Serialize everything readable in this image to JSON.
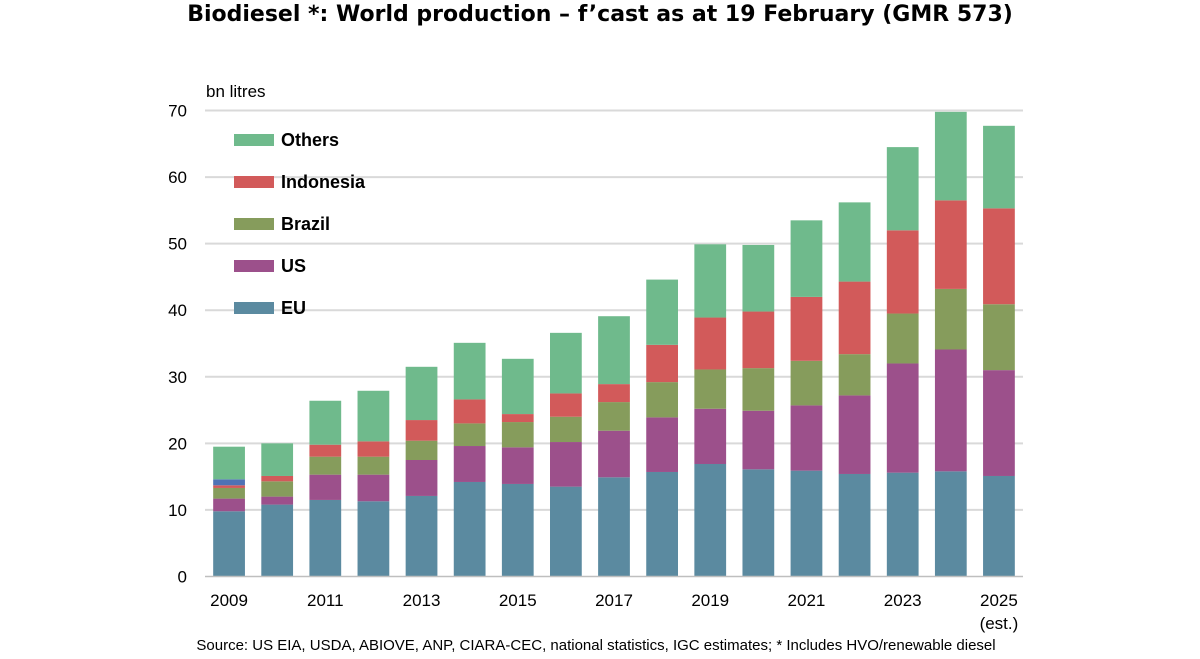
{
  "title": "Biodiesel *: World production – f’cast as at 19 February (GMR 573)",
  "source": "Source: US EIA, USDA, ABIOVE, ANP, CIARA-CEC, national statistics, IGC estimates; * Includes HVO/renewable diesel",
  "chart_data": {
    "type": "bar",
    "stacked": true,
    "title": "Biodiesel *: World production – f’cast as at 19 February (GMR 573)",
    "ylabel": "bn litres",
    "ylim": [
      0,
      70
    ],
    "yticks": [
      0,
      10,
      20,
      30,
      40,
      50,
      60,
      70
    ],
    "grid": true,
    "legend_position": "top-left",
    "categories": [
      "2009",
      "2010",
      "2011",
      "2012",
      "2013",
      "2014",
      "2015",
      "2016",
      "2017",
      "2018",
      "2019",
      "2020",
      "2021",
      "2022",
      "2023",
      "2024",
      "2025"
    ],
    "x_tick_labels": [
      "2009",
      "",
      "2011",
      "",
      "2013",
      "",
      "2015",
      "",
      "2017",
      "",
      "2019",
      "",
      "2021",
      "",
      "2023",
      "",
      "2025"
    ],
    "x_tick_sublabel": {
      "category": "2025",
      "text": "(est.)"
    },
    "series": [
      {
        "name": "EU",
        "color": "#5b8aa0",
        "values": [
          9.8,
          10.8,
          11.5,
          11.3,
          12.1,
          14.2,
          13.9,
          13.5,
          14.9,
          15.7,
          16.9,
          16.1,
          15.9,
          15.4,
          15.6,
          15.8,
          15.1
        ]
      },
      {
        "name": "US",
        "color": "#9c508b",
        "values": [
          1.9,
          1.2,
          3.8,
          4.0,
          5.4,
          5.4,
          5.5,
          6.7,
          7.0,
          8.2,
          8.3,
          8.8,
          9.8,
          11.8,
          16.4,
          18.3,
          15.9
        ]
      },
      {
        "name": "Brazil",
        "color": "#869c5c",
        "values": [
          1.6,
          2.3,
          2.7,
          2.7,
          2.9,
          3.4,
          3.8,
          3.8,
          4.3,
          5.3,
          5.9,
          6.4,
          6.7,
          6.2,
          7.5,
          9.1,
          9.9
        ]
      },
      {
        "name": "Indonesia",
        "color": "#d25a5a",
        "values": [
          0.4,
          0.8,
          1.8,
          2.3,
          3.1,
          3.6,
          1.2,
          3.5,
          2.7,
          5.6,
          7.8,
          8.5,
          9.6,
          10.9,
          12.5,
          13.3,
          14.4
        ]
      },
      {
        "name": "Others",
        "color": "#6fba8c",
        "values": [
          4.9,
          4.9,
          6.6,
          7.6,
          8.0,
          8.5,
          8.3,
          9.1,
          10.2,
          9.8,
          11.0,
          10.0,
          11.5,
          11.9,
          12.5,
          13.3,
          12.4
        ]
      }
    ],
    "extra_segment_2009": {
      "color": "#4f72b5",
      "value": 0.9
    }
  }
}
